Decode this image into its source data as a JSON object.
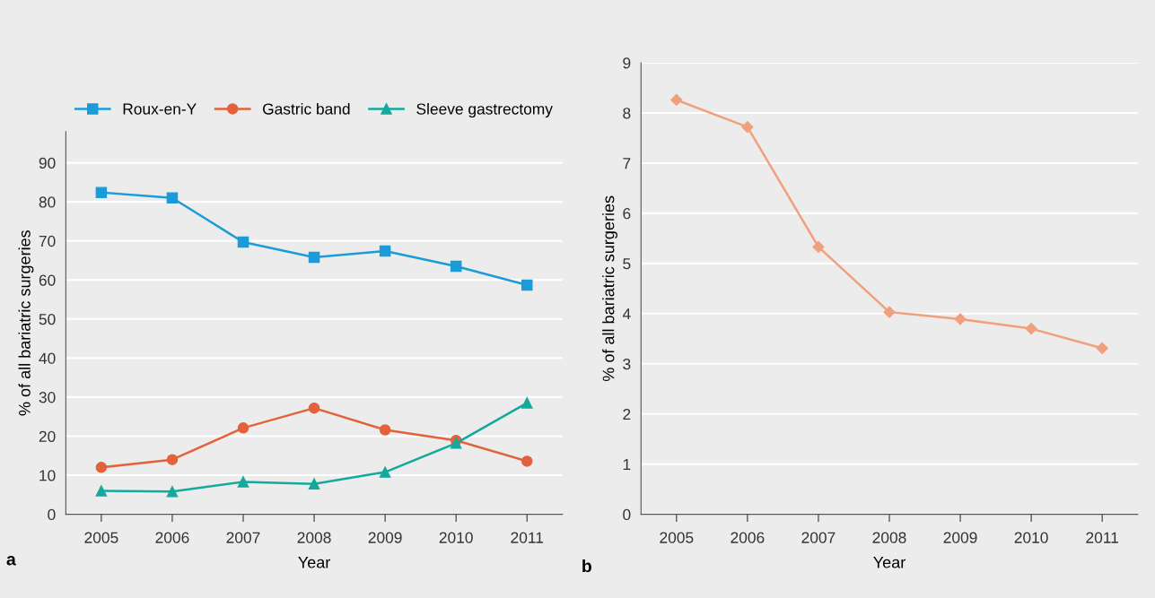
{
  "chart_data": [
    {
      "type": "line",
      "categories": [
        "2005",
        "2006",
        "2007",
        "2008",
        "2009",
        "2010",
        "2011"
      ],
      "xlabel": "Year",
      "ylabel": "% of all bariatric surgeries",
      "ylim": [
        0,
        98
      ],
      "yticks": [
        0,
        10,
        20,
        30,
        40,
        50,
        60,
        70,
        80,
        90
      ],
      "grid": "y",
      "legend": "top",
      "annotations": [
        "a"
      ],
      "series": [
        {
          "name": "Roux-en-Y",
          "color": "#1b9bd7",
          "marker": "square",
          "values": [
            82.4,
            81.0,
            69.7,
            65.8,
            67.4,
            63.5,
            58.7
          ]
        },
        {
          "name": "Gastric band",
          "color": "#e2623b",
          "marker": "circle",
          "values": [
            12.0,
            14.0,
            22.1,
            27.2,
            21.6,
            18.9,
            13.6
          ]
        },
        {
          "name": "Sleeve gastrectomy",
          "color": "#15a99b",
          "marker": "triangle",
          "values": [
            6.0,
            5.8,
            8.3,
            7.8,
            10.8,
            18.2,
            28.5
          ]
        }
      ]
    },
    {
      "type": "line",
      "categories": [
        "2005",
        "2006",
        "2007",
        "2008",
        "2009",
        "2010",
        "2011"
      ],
      "xlabel": "Year",
      "ylabel": "% of all bariatric surgeries",
      "ylim": [
        0,
        9
      ],
      "yticks": [
        0,
        1,
        2,
        3,
        4,
        5,
        6,
        7,
        8,
        9
      ],
      "grid": "y",
      "annotations": [
        "b"
      ],
      "series": [
        {
          "color": "#f0a07c",
          "marker": "diamond",
          "values": [
            8.26,
            7.72,
            5.33,
            4.03,
            3.89,
            3.7,
            3.31
          ]
        }
      ]
    }
  ]
}
